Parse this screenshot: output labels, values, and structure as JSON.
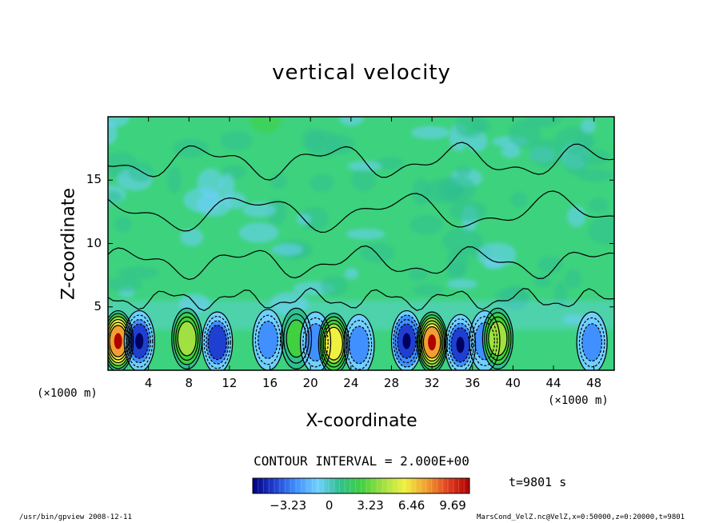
{
  "chart_data": {
    "type": "heatmap",
    "title": "vertical velocity",
    "xlabel": "X-coordinate",
    "ylabel": "Z-coordinate",
    "x_unit": "(×1000 m)",
    "x_ticks": [
      4,
      8,
      12,
      16,
      20,
      24,
      28,
      32,
      36,
      40,
      44,
      48
    ],
    "y_ticks": [
      5,
      10,
      15
    ],
    "xlim": [
      0,
      50
    ],
    "ylim": [
      0,
      20
    ],
    "contour_interval": "CONTOUR INTERVAL = 2.000E+00",
    "time_label": "t=9801 s",
    "colorbar": {
      "ticks": [
        "−3.23",
        "0",
        "3.23",
        "6.46",
        "9.69"
      ],
      "tick_values": [
        -3.23,
        0,
        3.23,
        6.46,
        9.69
      ],
      "range": [
        -6.0,
        11.0
      ],
      "colors": [
        "#000080",
        "#1f3fd0",
        "#4090ff",
        "#70d0ff",
        "#30c090",
        "#40d040",
        "#a0e040",
        "#f0f040",
        "#f0a030",
        "#e04020",
        "#b00000"
      ]
    },
    "features": [
      {
        "x": 1.0,
        "z": 2.3,
        "value": 9.6
      },
      {
        "x": 3.1,
        "z": 2.3,
        "value": -5.0
      },
      {
        "x": 7.8,
        "z": 2.5,
        "value": 6.0
      },
      {
        "x": 10.8,
        "z": 2.2,
        "value": -4.5
      },
      {
        "x": 15.8,
        "z": 2.4,
        "value": -4.0
      },
      {
        "x": 18.6,
        "z": 2.5,
        "value": 2.5
      },
      {
        "x": 20.5,
        "z": 2.2,
        "value": -3.5
      },
      {
        "x": 22.3,
        "z": 2.1,
        "value": 7.0
      },
      {
        "x": 24.8,
        "z": 2.0,
        "value": -2.5
      },
      {
        "x": 29.5,
        "z": 2.3,
        "value": -5.5
      },
      {
        "x": 32.0,
        "z": 2.2,
        "value": 9.2
      },
      {
        "x": 34.8,
        "z": 2.0,
        "value": -5.0
      },
      {
        "x": 37.2,
        "z": 2.3,
        "value": -3.0
      },
      {
        "x": 38.5,
        "z": 2.5,
        "value": 5.5
      },
      {
        "x": 47.8,
        "z": 2.2,
        "value": -4.0
      }
    ]
  },
  "footer": {
    "left": "/usr/bin/gpview   2008-12-11",
    "right": "MarsCond_VelZ.nc@VelZ,x=0:50000,z=0:20000,t=9801"
  }
}
